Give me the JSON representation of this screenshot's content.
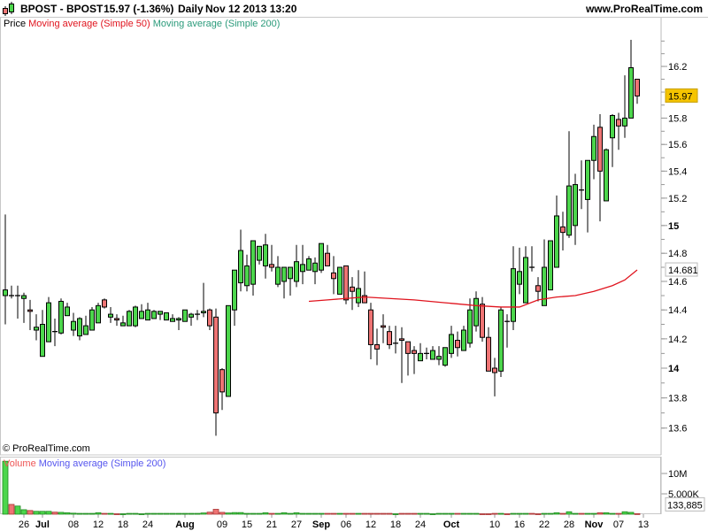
{
  "header": {
    "symbol": "BPOST - BPOST",
    "quote": "15.97 (-1.36%)",
    "period": "Daily",
    "datetime": "Nov 12 2013 13:20",
    "site": "www.ProRealTime.com"
  },
  "legend": {
    "price": "Price",
    "ma50": "Moving average (Simple 50)",
    "ma200": "Moving average (Simple 200)"
  },
  "volume_legend": {
    "volume": "Volume",
    "ma200": "Moving average (Simple 200)"
  },
  "copyright": "© ProRealTime.com",
  "colors": {
    "up": "#4cd64c",
    "down": "#ee7474",
    "ma50": "#e0141e",
    "ma200_legend": "#2a9a7a",
    "vol_ma_legend": "#5555ee",
    "last_price_bg": "#f5c400",
    "ma_label_text": "#e0141e"
  },
  "icons": {
    "header_logo": "candlestick-icon"
  },
  "chart_data": {
    "type": "candlestick",
    "price_scale": "log",
    "ylim": [
      13.5,
      16.5
    ],
    "price_ticks": [
      {
        "v": 13.6,
        "label": "13.6"
      },
      {
        "v": 13.8,
        "label": "13.8"
      },
      {
        "v": 14.0,
        "label": "14",
        "bold": true
      },
      {
        "v": 14.2,
        "label": "14.2"
      },
      {
        "v": 14.4,
        "label": "14.4"
      },
      {
        "v": 14.6,
        "label": "14.6"
      },
      {
        "v": 14.8,
        "label": "14.8"
      },
      {
        "v": 15.0,
        "label": "15",
        "bold": true
      },
      {
        "v": 15.2,
        "label": "15.2"
      },
      {
        "v": 15.4,
        "label": "15.4"
      },
      {
        "v": 15.6,
        "label": "15.6"
      },
      {
        "v": 15.8,
        "label": "15.8"
      },
      {
        "v": 16.2,
        "label": "16.2"
      }
    ],
    "last_price_label": {
      "value": 15.97,
      "label": "15.97"
    },
    "ma50_label": {
      "value": 14.681,
      "label": "14.681"
    },
    "volume_ticks": [
      {
        "v": 10000000,
        "label": "10M"
      },
      {
        "v": 5000000,
        "label": "5,000K"
      }
    ],
    "last_volume_label": {
      "value": 133885,
      "label": "133,885"
    },
    "x_ticks": [
      {
        "date": "2013-06-26",
        "label": "26"
      },
      {
        "date": "2013-07-01",
        "label": "Jul",
        "bold": true
      },
      {
        "date": "2013-07-08",
        "label": "08"
      },
      {
        "date": "2013-07-12",
        "label": "12"
      },
      {
        "date": "2013-07-18",
        "label": "18"
      },
      {
        "date": "2013-07-24",
        "label": "24"
      },
      {
        "date": "2013-08-01",
        "label": "Aug",
        "bold": true
      },
      {
        "date": "2013-08-09",
        "label": "09"
      },
      {
        "date": "2013-08-15",
        "label": "15"
      },
      {
        "date": "2013-08-21",
        "label": "21"
      },
      {
        "date": "2013-08-27",
        "label": "27"
      },
      {
        "date": "2013-09-02",
        "label": "Sep",
        "bold": true
      },
      {
        "date": "2013-09-06",
        "label": "06"
      },
      {
        "date": "2013-09-12",
        "label": "12"
      },
      {
        "date": "2013-09-18",
        "label": "18"
      },
      {
        "date": "2013-09-24",
        "label": "24"
      },
      {
        "date": "2013-10-01",
        "label": "Oct",
        "bold": true
      },
      {
        "date": "2013-10-10",
        "label": "10"
      },
      {
        "date": "2013-10-16",
        "label": "16"
      },
      {
        "date": "2013-10-22",
        "label": "22"
      },
      {
        "date": "2013-10-28",
        "label": "28"
      },
      {
        "date": "2013-11-01",
        "label": "Nov",
        "bold": true
      },
      {
        "date": "2013-11-07",
        "label": "07"
      },
      {
        "date": "2013-11-13",
        "label": "13"
      }
    ],
    "candles_columns": [
      "date",
      "open",
      "high",
      "low",
      "close",
      "volume"
    ],
    "candles": [
      [
        "2013-06-21",
        14.5,
        15.08,
        14.3,
        14.54,
        13000000
      ],
      [
        "2013-06-24",
        14.5,
        14.57,
        14.48,
        14.5,
        2400000
      ],
      [
        "2013-06-25",
        14.5,
        14.57,
        14.34,
        14.5,
        2000000
      ],
      [
        "2013-06-26",
        14.48,
        14.52,
        14.31,
        14.5,
        1100000
      ],
      [
        "2013-06-27",
        14.4,
        14.47,
        14.26,
        14.39,
        900000
      ],
      [
        "2013-06-28",
        14.26,
        14.37,
        14.19,
        14.28,
        700000
      ],
      [
        "2013-07-01",
        14.08,
        14.4,
        14.08,
        14.3,
        700000
      ],
      [
        "2013-07-02",
        14.18,
        14.49,
        14.18,
        14.45,
        700000
      ],
      [
        "2013-07-03",
        14.25,
        14.34,
        14.15,
        14.25,
        500000
      ],
      [
        "2013-07-04",
        14.24,
        14.48,
        14.23,
        14.46,
        450000
      ],
      [
        "2013-07-05",
        14.36,
        14.45,
        14.36,
        14.42,
        350000
      ],
      [
        "2013-07-08",
        14.26,
        14.38,
        14.22,
        14.32,
        250000
      ],
      [
        "2013-07-09",
        14.22,
        14.35,
        14.19,
        14.34,
        200000
      ],
      [
        "2013-07-10",
        14.23,
        14.36,
        14.23,
        14.29,
        200000
      ],
      [
        "2013-07-11",
        14.26,
        14.42,
        14.26,
        14.4,
        200000
      ],
      [
        "2013-07-12",
        14.31,
        14.45,
        14.31,
        14.43,
        350000
      ],
      [
        "2013-07-15",
        14.47,
        14.48,
        14.41,
        14.42,
        200000
      ],
      [
        "2013-07-16",
        14.35,
        14.42,
        14.31,
        14.37,
        200000
      ],
      [
        "2013-07-17",
        14.34,
        14.37,
        14.29,
        14.33,
        100000
      ],
      [
        "2013-07-18",
        14.29,
        14.36,
        14.29,
        14.31,
        100000
      ],
      [
        "2013-07-19",
        14.29,
        14.4,
        14.29,
        14.39,
        200000
      ],
      [
        "2013-07-22",
        14.29,
        14.43,
        14.28,
        14.42,
        200000
      ],
      [
        "2013-07-23",
        14.34,
        14.44,
        14.34,
        14.39,
        100000
      ],
      [
        "2013-07-24",
        14.33,
        14.45,
        14.33,
        14.4,
        200000
      ],
      [
        "2013-07-25",
        14.34,
        14.4,
        14.34,
        14.39,
        200000
      ],
      [
        "2013-07-26",
        14.37,
        14.39,
        14.33,
        14.39,
        200000
      ],
      [
        "2013-07-29",
        14.33,
        14.37,
        14.33,
        14.38,
        200000
      ],
      [
        "2013-07-30",
        14.32,
        14.37,
        14.32,
        14.34,
        200000
      ],
      [
        "2013-07-31",
        14.33,
        14.35,
        14.26,
        14.34,
        200000
      ],
      [
        "2013-08-01",
        14.32,
        14.4,
        14.32,
        14.4,
        200000
      ],
      [
        "2013-08-02",
        14.35,
        14.38,
        14.29,
        14.37,
        200000
      ],
      [
        "2013-08-05",
        14.37,
        14.4,
        14.33,
        14.37,
        200000
      ],
      [
        "2013-08-06",
        14.38,
        14.59,
        14.35,
        14.39,
        300000
      ],
      [
        "2013-08-07",
        14.4,
        14.41,
        14.26,
        14.29,
        500000
      ],
      [
        "2013-08-08",
        14.35,
        14.41,
        13.55,
        13.7,
        1200000
      ],
      [
        "2013-08-09",
        13.99,
        14.0,
        13.72,
        13.84,
        450000
      ],
      [
        "2013-08-12",
        13.81,
        14.43,
        13.81,
        14.43,
        300000
      ],
      [
        "2013-08-13",
        14.4,
        14.68,
        14.29,
        14.68,
        400000
      ],
      [
        "2013-08-14",
        14.59,
        14.97,
        14.53,
        14.82,
        400000
      ],
      [
        "2013-08-15",
        14.57,
        14.79,
        14.53,
        14.71,
        200000
      ],
      [
        "2013-08-16",
        14.58,
        14.89,
        14.5,
        14.89,
        200000
      ],
      [
        "2013-08-19",
        14.75,
        14.85,
        14.72,
        14.85,
        200000
      ],
      [
        "2013-08-20",
        14.71,
        14.94,
        14.62,
        14.86,
        350000
      ],
      [
        "2013-08-21",
        14.72,
        14.86,
        14.67,
        14.7,
        200000
      ],
      [
        "2013-08-22",
        14.58,
        14.78,
        14.56,
        14.7,
        200000
      ],
      [
        "2013-08-23",
        14.6,
        14.7,
        14.48,
        14.7,
        350000
      ],
      [
        "2013-08-26",
        14.62,
        14.7,
        14.5,
        14.7,
        200000
      ],
      [
        "2013-08-27",
        14.6,
        14.86,
        14.56,
        14.74,
        350000
      ],
      [
        "2013-08-28",
        14.67,
        14.86,
        14.58,
        14.72,
        200000
      ],
      [
        "2013-08-29",
        14.68,
        14.78,
        14.68,
        14.76,
        200000
      ],
      [
        "2013-08-30",
        14.67,
        14.77,
        14.58,
        14.73,
        200000
      ],
      [
        "2013-09-02",
        14.68,
        14.87,
        14.66,
        14.87,
        200000
      ],
      [
        "2013-09-03",
        14.8,
        14.86,
        14.71,
        14.71,
        200000
      ],
      [
        "2013-09-04",
        14.66,
        14.78,
        14.51,
        14.62,
        200000
      ],
      [
        "2013-09-05",
        14.51,
        14.7,
        14.51,
        14.7,
        200000
      ],
      [
        "2013-09-06",
        14.71,
        14.71,
        14.44,
        14.47,
        200000
      ],
      [
        "2013-09-09",
        14.56,
        14.63,
        14.4,
        14.53,
        200000
      ],
      [
        "2013-09-10",
        14.45,
        14.68,
        14.42,
        14.55,
        200000
      ],
      [
        "2013-09-11",
        14.5,
        14.67,
        14.45,
        14.45,
        200000
      ],
      [
        "2013-09-12",
        14.4,
        14.45,
        14.06,
        14.16,
        200000
      ],
      [
        "2013-09-13",
        14.16,
        14.27,
        14.02,
        14.13,
        200000
      ],
      [
        "2013-09-16",
        14.29,
        14.37,
        14.17,
        14.28,
        200000
      ],
      [
        "2013-09-17",
        14.25,
        14.29,
        14.13,
        14.16,
        200000
      ],
      [
        "2013-09-18",
        14.17,
        14.29,
        14.1,
        14.17,
        100000
      ],
      [
        "2013-09-19",
        14.2,
        14.28,
        13.9,
        14.19,
        200000
      ],
      [
        "2013-09-20",
        14.18,
        14.18,
        13.95,
        14.1,
        200000
      ],
      [
        "2013-09-23",
        14.12,
        14.15,
        13.96,
        14.1,
        200000
      ],
      [
        "2013-09-24",
        14.05,
        14.17,
        14.05,
        14.1,
        200000
      ],
      [
        "2013-09-25",
        14.1,
        14.14,
        14.06,
        14.1,
        200000
      ],
      [
        "2013-09-26",
        14.06,
        14.15,
        14.06,
        14.12,
        100000
      ],
      [
        "2013-09-27",
        14.06,
        14.15,
        14.02,
        14.08,
        200000
      ],
      [
        "2013-09-30",
        14.02,
        14.14,
        14.01,
        14.14,
        200000
      ],
      [
        "2013-10-01",
        14.1,
        14.29,
        14.07,
        14.23,
        200000
      ],
      [
        "2013-10-02",
        14.19,
        14.25,
        14.08,
        14.14,
        200000
      ],
      [
        "2013-10-03",
        14.12,
        14.29,
        14.12,
        14.26,
        200000
      ],
      [
        "2013-10-04",
        14.17,
        14.48,
        14.14,
        14.4,
        200000
      ],
      [
        "2013-10-07",
        14.29,
        14.53,
        14.25,
        14.48,
        200000
      ],
      [
        "2013-10-08",
        14.44,
        14.49,
        14.18,
        14.21,
        100000
      ],
      [
        "2013-10-09",
        14.21,
        14.28,
        13.98,
        13.98,
        100000
      ],
      [
        "2013-10-10",
        14.0,
        14.07,
        13.81,
        13.97,
        200000
      ],
      [
        "2013-10-11",
        13.98,
        14.42,
        13.94,
        14.4,
        200000
      ],
      [
        "2013-10-14",
        14.32,
        14.37,
        14.14,
        14.32,
        100000
      ],
      [
        "2013-10-15",
        14.32,
        14.85,
        14.26,
        14.69,
        200000
      ],
      [
        "2013-10-16",
        14.58,
        14.84,
        14.51,
        14.67,
        200000
      ],
      [
        "2013-10-17",
        14.45,
        14.85,
        14.45,
        14.77,
        200000
      ],
      [
        "2013-10-18",
        14.7,
        14.85,
        14.67,
        14.7,
        200000
      ],
      [
        "2013-10-21",
        14.57,
        14.63,
        14.46,
        14.53,
        100000
      ],
      [
        "2013-10-22",
        14.43,
        14.9,
        14.43,
        14.7,
        200000
      ],
      [
        "2013-10-23",
        14.54,
        14.89,
        14.54,
        14.89,
        200000
      ],
      [
        "2013-10-24",
        14.7,
        15.22,
        14.7,
        15.07,
        350000
      ],
      [
        "2013-10-25",
        14.99,
        15.1,
        14.82,
        14.95,
        200000
      ],
      [
        "2013-10-28",
        14.93,
        15.7,
        14.91,
        15.29,
        600000
      ],
      [
        "2013-10-29",
        15.0,
        15.38,
        14.86,
        15.3,
        200000
      ],
      [
        "2013-10-30",
        15.26,
        15.48,
        15.12,
        15.26,
        200000
      ],
      [
        "2013-10-31",
        15.19,
        15.48,
        14.95,
        15.48,
        200000
      ],
      [
        "2013-11-01",
        15.48,
        15.75,
        15.34,
        15.66,
        200000
      ],
      [
        "2013-11-04",
        15.73,
        15.83,
        15.03,
        15.4,
        350000
      ],
      [
        "2013-11-05",
        15.18,
        15.57,
        15.18,
        15.56,
        350000
      ],
      [
        "2013-11-06",
        15.65,
        15.83,
        15.43,
        15.82,
        200000
      ],
      [
        "2013-11-07",
        15.79,
        15.84,
        15.56,
        15.74,
        200000
      ],
      [
        "2013-11-08",
        15.74,
        16.13,
        15.65,
        15.8,
        600000
      ],
      [
        "2013-11-11",
        15.8,
        16.41,
        15.8,
        16.19,
        450000
      ],
      [
        "2013-11-12",
        16.1,
        16.1,
        15.91,
        15.97,
        133885
      ]
    ],
    "ma50": [
      [
        "2013-08-29",
        14.46
      ],
      [
        "2013-09-03",
        14.47
      ],
      [
        "2013-09-06",
        14.48
      ],
      [
        "2013-09-11",
        14.49
      ],
      [
        "2013-09-17",
        14.48
      ],
      [
        "2013-09-23",
        14.47
      ],
      [
        "2013-09-30",
        14.45
      ],
      [
        "2013-10-07",
        14.43
      ],
      [
        "2013-10-11",
        14.42
      ],
      [
        "2013-10-16",
        14.42
      ],
      [
        "2013-10-21",
        14.47
      ],
      [
        "2013-10-24",
        14.49
      ],
      [
        "2013-10-29",
        14.5
      ],
      [
        "2013-11-01",
        14.53
      ],
      [
        "2013-11-06",
        14.57
      ],
      [
        "2013-11-08",
        14.61
      ],
      [
        "2013-11-12",
        14.681
      ]
    ]
  }
}
